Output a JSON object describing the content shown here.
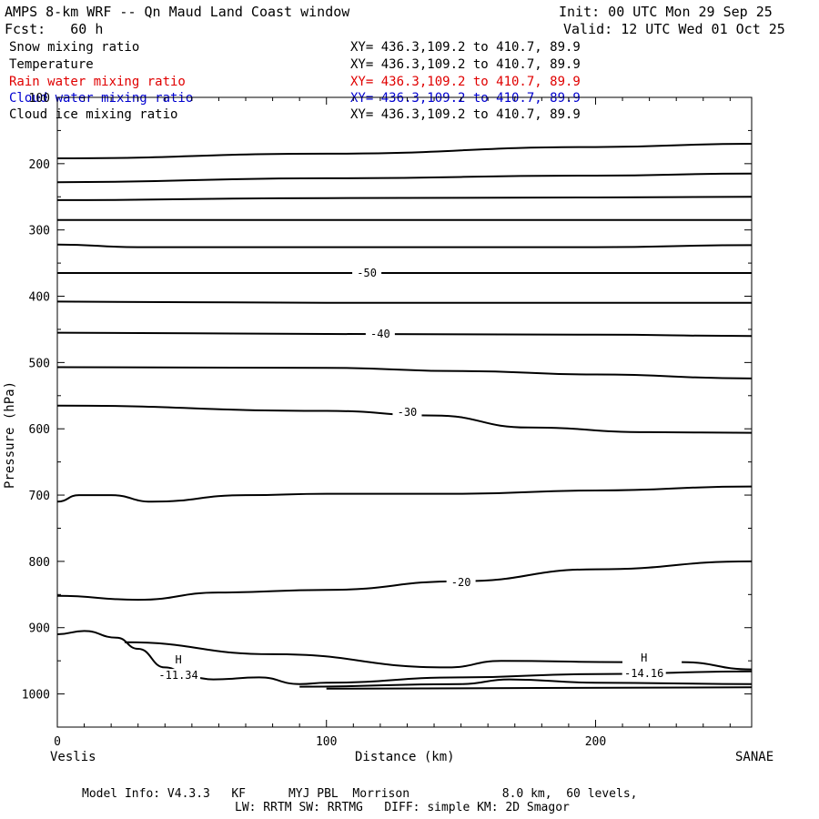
{
  "header": {
    "title": "AMPS 8-km WRF -- Qn Maud Land Coast window",
    "init": "Init: 00 UTC Mon 29 Sep 25",
    "fcst": "Fcst:   60 h",
    "valid": "Valid: 12 UTC Wed 01 Oct 25"
  },
  "fields": [
    {
      "name": "Snow mixing ratio",
      "xy": "XY= 436.3,109.2 to 410.7, 89.9",
      "color": "#000000"
    },
    {
      "name": "Temperature",
      "xy": "XY= 436.3,109.2 to 410.7, 89.9",
      "color": "#000000"
    },
    {
      "name": "Rain water mixing ratio",
      "xy": "XY= 436.3,109.2 to 410.7, 89.9",
      "color": "#e00000"
    },
    {
      "name": "Cloud water mixing ratio",
      "xy": "XY= 436.3,109.2 to 410.7, 89.9",
      "color": "#0000d0"
    },
    {
      "name": "Cloud ice mixing ratio",
      "xy": "XY= 436.3,109.2 to 410.7, 89.9",
      "color": "#000000"
    }
  ],
  "footer": {
    "line1": "Model Info: V4.3.3   KF      MYJ PBL  Morrison             8.0 km,  60 levels,",
    "line2": "LW: RRTM SW: RRTMG   DIFF: simple KM: 2D Smagor"
  },
  "chart_data": {
    "type": "line",
    "xlabel": "Distance (km)",
    "ylabel": "Pressure (hPa)",
    "x_left_label": "Veslis",
    "x_right_label": "SANAE",
    "xlim": [
      0,
      258
    ],
    "ylim": [
      1050,
      100
    ],
    "x_ticks": [
      "0",
      "100",
      "200"
    ],
    "x_tick_values": [
      0,
      100,
      200
    ],
    "y_ticks": [
      "100",
      "200",
      "300",
      "400",
      "500",
      "600",
      "700",
      "800",
      "900",
      "1000"
    ],
    "y_tick_values": [
      100,
      200,
      300,
      400,
      500,
      600,
      700,
      800,
      900,
      1000
    ],
    "isotherms": [
      {
        "points": [
          [
            0,
            192
          ],
          [
            100,
            185
          ],
          [
            200,
            175
          ],
          [
            258,
            170
          ]
        ]
      },
      {
        "points": [
          [
            0,
            228
          ],
          [
            100,
            222
          ],
          [
            200,
            218
          ],
          [
            258,
            215
          ]
        ]
      },
      {
        "points": [
          [
            0,
            255
          ],
          [
            100,
            252
          ],
          [
            200,
            251
          ],
          [
            258,
            250
          ]
        ]
      },
      {
        "points": [
          [
            0,
            285
          ],
          [
            100,
            285
          ],
          [
            200,
            285
          ],
          [
            258,
            285
          ]
        ]
      },
      {
        "points": [
          [
            0,
            322
          ],
          [
            30,
            326
          ],
          [
            100,
            326
          ],
          [
            200,
            326
          ],
          [
            258,
            323
          ]
        ]
      },
      {
        "points": [
          [
            0,
            365
          ],
          [
            100,
            365
          ],
          [
            200,
            365
          ],
          [
            258,
            365
          ]
        ]
      },
      {
        "points": [
          [
            0,
            408
          ],
          [
            100,
            410
          ],
          [
            200,
            410
          ],
          [
            258,
            410
          ]
        ]
      },
      {
        "points": [
          [
            0,
            455
          ],
          [
            100,
            457
          ],
          [
            200,
            458
          ],
          [
            258,
            460
          ]
        ]
      },
      {
        "points": [
          [
            0,
            507
          ],
          [
            100,
            508
          ],
          [
            150,
            513
          ],
          [
            200,
            518
          ],
          [
            258,
            524
          ]
        ]
      },
      {
        "points": [
          [
            0,
            565
          ],
          [
            100,
            573
          ],
          [
            140,
            580
          ],
          [
            175,
            598
          ],
          [
            220,
            605
          ],
          [
            258,
            606
          ]
        ]
      },
      {
        "points": [
          [
            0,
            710
          ],
          [
            8,
            700
          ],
          [
            20,
            700
          ],
          [
            35,
            710
          ],
          [
            70,
            700
          ],
          [
            100,
            698
          ],
          [
            150,
            698
          ],
          [
            200,
            693
          ],
          [
            258,
            687
          ]
        ]
      },
      {
        "points": [
          [
            0,
            852
          ],
          [
            30,
            858
          ],
          [
            60,
            847
          ],
          [
            100,
            843
          ],
          [
            150,
            830
          ],
          [
            200,
            812
          ],
          [
            258,
            800
          ]
        ]
      },
      {
        "points": [
          [
            0,
            910
          ],
          [
            10,
            905
          ],
          [
            22,
            915
          ],
          [
            30,
            932
          ],
          [
            40,
            960
          ],
          [
            50,
            975
          ],
          [
            58,
            978
          ],
          [
            75,
            975
          ],
          [
            90,
            985
          ],
          [
            100,
            983
          ],
          [
            150,
            975
          ],
          [
            200,
            970
          ],
          [
            258,
            966
          ]
        ]
      },
      {
        "points": [
          [
            25,
            922
          ],
          [
            80,
            940
          ],
          [
            145,
            960
          ],
          [
            165,
            950
          ],
          [
            210,
            952
          ]
        ]
      },
      {
        "points": [
          [
            232,
            952
          ],
          [
            258,
            963
          ]
        ]
      },
      {
        "points": [
          [
            90,
            989
          ],
          [
            150,
            985
          ],
          [
            168,
            978
          ],
          [
            200,
            983
          ],
          [
            258,
            985
          ]
        ]
      },
      {
        "points": [
          [
            100,
            992
          ],
          [
            258,
            990
          ]
        ]
      }
    ],
    "contour_labels": [
      {
        "x": 115,
        "y": 365,
        "text": "-50"
      },
      {
        "x": 120,
        "y": 457,
        "text": "-40"
      },
      {
        "x": 130,
        "y": 575,
        "text": "-30"
      },
      {
        "x": 150,
        "y": 832,
        "text": "-20"
      }
    ],
    "extrema": [
      {
        "x": 45,
        "y": 965,
        "mark": "H",
        "value": "-11.34"
      },
      {
        "x": 218,
        "y": 962,
        "mark": "H",
        "value": "-14.16"
      }
    ],
    "grid": false
  }
}
